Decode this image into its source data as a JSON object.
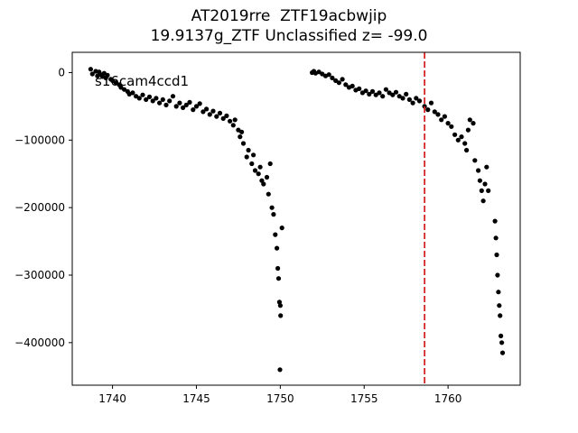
{
  "chart_data": {
    "type": "scatter",
    "title_line1": "AT2019rre  ZTF19acbwjip",
    "title_line2": "19.9137g_ZTF Unclassified z= -99.0",
    "annotation": "s16cam4ccd1",
    "xlabel": "",
    "ylabel": "",
    "xlim": [
      1737.6,
      1764.3
    ],
    "ylim": [
      -463000,
      30000
    ],
    "xticks": [
      1740,
      1745,
      1750,
      1755,
      1760
    ],
    "yticks": [
      0,
      -100000,
      -200000,
      -300000,
      -400000
    ],
    "ytick_labels": [
      "0",
      "−100000",
      "−200000",
      "−300000",
      "−400000"
    ],
    "vline": {
      "x": 1758.6,
      "color": "#d62728",
      "style": "dashed"
    },
    "marker_color": "#000000",
    "grid": false,
    "series": [
      {
        "values": [
          [
            1738.7,
            5000
          ],
          [
            1738.8,
            -2000
          ],
          [
            1739.0,
            2000
          ],
          [
            1739.1,
            -5000
          ],
          [
            1739.2,
            1000
          ],
          [
            1739.3,
            -3000
          ],
          [
            1739.4,
            -6000
          ],
          [
            1739.5,
            -1000
          ],
          [
            1739.6,
            -8000
          ],
          [
            1739.7,
            -4000
          ],
          [
            1739.9,
            -10000
          ],
          [
            1740.0,
            -12000
          ],
          [
            1740.2,
            -15000
          ],
          [
            1740.4,
            -18000
          ],
          [
            1740.5,
            -22000
          ],
          [
            1740.7,
            -25000
          ],
          [
            1740.9,
            -28000
          ],
          [
            1741.0,
            -32000
          ],
          [
            1741.2,
            -30000
          ],
          [
            1741.4,
            -35000
          ],
          [
            1741.6,
            -38000
          ],
          [
            1741.8,
            -33000
          ],
          [
            1742.0,
            -40000
          ],
          [
            1742.2,
            -36000
          ],
          [
            1742.4,
            -42000
          ],
          [
            1742.6,
            -38000
          ],
          [
            1742.8,
            -45000
          ],
          [
            1743.0,
            -40000
          ],
          [
            1743.2,
            -48000
          ],
          [
            1743.4,
            -42000
          ],
          [
            1743.6,
            -35000
          ],
          [
            1743.8,
            -50000
          ],
          [
            1744.0,
            -45000
          ],
          [
            1744.2,
            -52000
          ],
          [
            1744.4,
            -48000
          ],
          [
            1744.6,
            -44000
          ],
          [
            1744.8,
            -55000
          ],
          [
            1745.0,
            -50000
          ],
          [
            1745.2,
            -46000
          ],
          [
            1745.4,
            -58000
          ],
          [
            1745.6,
            -54000
          ],
          [
            1745.8,
            -62000
          ],
          [
            1746.0,
            -57000
          ],
          [
            1746.2,
            -65000
          ],
          [
            1746.4,
            -60000
          ],
          [
            1746.6,
            -68000
          ],
          [
            1746.8,
            -64000
          ],
          [
            1747.0,
            -72000
          ],
          [
            1747.2,
            -78000
          ],
          [
            1747.3,
            -70000
          ],
          [
            1747.5,
            -85000
          ],
          [
            1747.6,
            -95000
          ],
          [
            1747.7,
            -88000
          ],
          [
            1747.8,
            -105000
          ],
          [
            1748.0,
            -125000
          ],
          [
            1748.1,
            -115000
          ],
          [
            1748.3,
            -135000
          ],
          [
            1748.4,
            -122000
          ],
          [
            1748.5,
            -145000
          ],
          [
            1748.7,
            -150000
          ],
          [
            1748.8,
            -140000
          ],
          [
            1748.9,
            -160000
          ],
          [
            1749.0,
            -165000
          ],
          [
            1749.2,
            -155000
          ],
          [
            1749.3,
            -180000
          ],
          [
            1749.4,
            -135000
          ],
          [
            1749.5,
            -200000
          ],
          [
            1749.6,
            -210000
          ],
          [
            1749.7,
            -240000
          ],
          [
            1749.8,
            -260000
          ],
          [
            1749.85,
            -290000
          ],
          [
            1749.9,
            -305000
          ],
          [
            1749.95,
            -340000
          ],
          [
            1750.0,
            -345000
          ],
          [
            1750.02,
            -360000
          ],
          [
            1749.98,
            -440000
          ],
          [
            1750.1,
            -230000
          ],
          [
            1751.9,
            0
          ],
          [
            1752.0,
            2000
          ],
          [
            1752.1,
            -1000
          ],
          [
            1752.3,
            1000
          ],
          [
            1752.5,
            -2000
          ],
          [
            1752.7,
            -5000
          ],
          [
            1752.9,
            -3000
          ],
          [
            1753.1,
            -8000
          ],
          [
            1753.3,
            -12000
          ],
          [
            1753.5,
            -15000
          ],
          [
            1753.7,
            -10000
          ],
          [
            1753.9,
            -18000
          ],
          [
            1754.1,
            -22000
          ],
          [
            1754.3,
            -20000
          ],
          [
            1754.5,
            -26000
          ],
          [
            1754.7,
            -24000
          ],
          [
            1754.9,
            -30000
          ],
          [
            1755.1,
            -27000
          ],
          [
            1755.3,
            -32000
          ],
          [
            1755.5,
            -28000
          ],
          [
            1755.7,
            -33000
          ],
          [
            1755.9,
            -30000
          ],
          [
            1756.1,
            -35000
          ],
          [
            1756.3,
            -25000
          ],
          [
            1756.5,
            -30000
          ],
          [
            1756.7,
            -33000
          ],
          [
            1756.9,
            -29000
          ],
          [
            1757.1,
            -35000
          ],
          [
            1757.3,
            -38000
          ],
          [
            1757.5,
            -32000
          ],
          [
            1757.7,
            -40000
          ],
          [
            1757.9,
            -45000
          ],
          [
            1758.1,
            -38000
          ],
          [
            1758.3,
            -42000
          ],
          [
            1758.6,
            -50000
          ],
          [
            1758.8,
            -55000
          ],
          [
            1759.0,
            -45000
          ],
          [
            1759.2,
            -58000
          ],
          [
            1759.4,
            -62000
          ],
          [
            1759.6,
            -70000
          ],
          [
            1759.8,
            -65000
          ],
          [
            1760.0,
            -75000
          ],
          [
            1760.2,
            -80000
          ],
          [
            1760.4,
            -92000
          ],
          [
            1760.6,
            -100000
          ],
          [
            1760.8,
            -95000
          ],
          [
            1761.0,
            -105000
          ],
          [
            1761.1,
            -115000
          ],
          [
            1761.2,
            -85000
          ],
          [
            1761.3,
            -70000
          ],
          [
            1761.5,
            -75000
          ],
          [
            1761.6,
            -130000
          ],
          [
            1761.8,
            -145000
          ],
          [
            1761.9,
            -160000
          ],
          [
            1762.0,
            -175000
          ],
          [
            1762.1,
            -190000
          ],
          [
            1762.2,
            -165000
          ],
          [
            1762.3,
            -140000
          ],
          [
            1762.4,
            -175000
          ],
          [
            1762.8,
            -220000
          ],
          [
            1762.85,
            -245000
          ],
          [
            1762.9,
            -270000
          ],
          [
            1762.95,
            -300000
          ],
          [
            1763.0,
            -325000
          ],
          [
            1763.05,
            -345000
          ],
          [
            1763.1,
            -360000
          ],
          [
            1763.15,
            -390000
          ],
          [
            1763.2,
            -400000
          ],
          [
            1763.25,
            -415000
          ]
        ]
      }
    ]
  }
}
